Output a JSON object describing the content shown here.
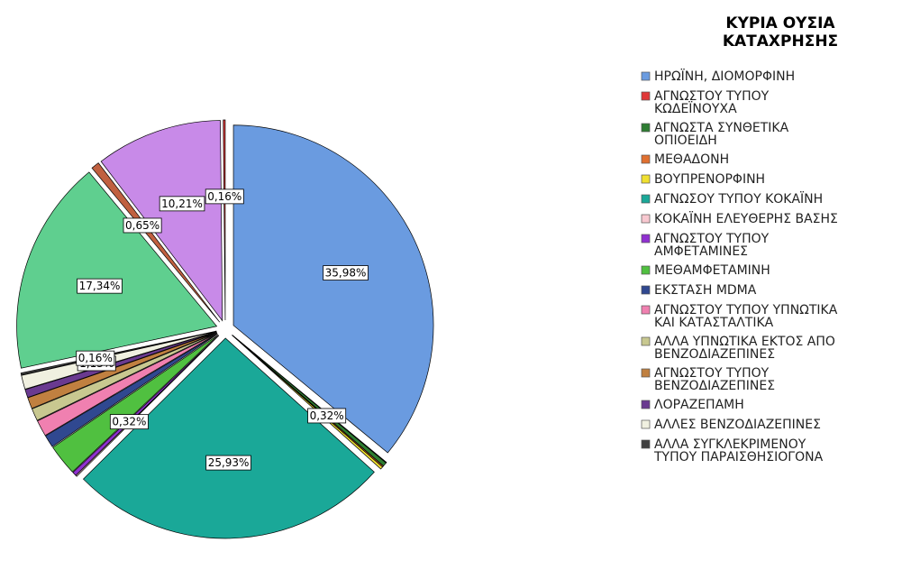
{
  "chart_data": {
    "type": "pie",
    "legend_title": "ΚΥΡΙΑ ΟΥΣΙΑ\nΚΑΤΑΧΡΗΣΗΣ",
    "categories": [
      "ΗΡΩΪΝΗ, ΔΙΟΜΟΡΦΙΝΗ",
      "ΑΓΝΩΣΤΟΥ ΤΥΠΟΥ\nΚΩΔΕΪΝΟΥΧΑ",
      "ΑΓΝΩΣΤΑ ΣΥΝΘΕΤΙΚΑ\nΟΠΙΟΕΙΔΗ",
      "ΜΕΘΑΔΟΝΗ",
      "ΒΟΥΠΡΕΝΟΡΦΙΝΗ",
      "ΑΓΝΩΣΟΥ ΤΥΠΟΥ ΚΟΚΑΪΝΗ",
      "ΚΟΚΑΪΝΗ ΕΛΕΥΘΕΡΗΣ ΒΑΣΗΣ",
      "ΑΓΝΩΣΤΟΥ ΤΥΠΟΥ\nΑΜΦΕΤΑΜΙΝΕΣ",
      "ΜΕΘΑΜΦΕΤΑΜΙΝΗ",
      "ΕΚΣΤΑΣΗ MDMA",
      "ΑΓΝΩΣΤΟΥ ΤΥΠΟΥ ΥΠΝΩΤΙΚΑ\nΚΑΙ ΚΑΤΑΣΤΑΛΤΙΚΑ",
      "ΑΛΛΑ ΥΠΝΩΤΙΚΑ ΕΚΤΟΣ ΑΠΟ\nΒΕΝΖΟΔΙΑΖΕΠΙΝΕΣ",
      "ΑΓΝΩΣΤΟΥ ΤΥΠΟΥ\nΒΕΝΖΟΔΙΑΖΕΠΙΝΕΣ",
      "ΛΟΡΑΖΕΠΑΜΗ",
      "ΑΛΛΕΣ ΒΕΝΖΟΔΙΑΖΕΠΙΝΕΣ",
      "ΑΛΛΑ ΣΥΓΚΛΕΚΡΙΜΕΝΟΥ\nΤΥΠΟΥ ΠΑΡΑΙΣΘΗΣΙΟΓΟΝΑ",
      null,
      null,
      null,
      null
    ],
    "values": [
      35.98,
      0.05,
      0.32,
      0.1,
      0.2,
      25.93,
      0.1,
      0.32,
      2.5,
      1.0,
      1.3,
      1.0,
      0.9,
      0.65,
      1.13,
      0.16,
      17.34,
      0.65,
      10.21,
      0.16
    ],
    "value_labels": [
      "35,98%",
      null,
      "0,32%",
      null,
      null,
      "25,93%",
      null,
      "0,32%",
      null,
      null,
      null,
      null,
      null,
      null,
      "1,13%",
      "0,16%",
      "17,34%",
      "0,65%",
      "10,21%",
      "0,16%"
    ],
    "colors": [
      "#6a9be0",
      "#e03838",
      "#2e7d32",
      "#e07030",
      "#f0e030",
      "#1aa898",
      "#f8c8d0",
      "#9030d0",
      "#50c040",
      "#304890",
      "#f080b0",
      "#c8c890",
      "#c08040",
      "#6a3a90",
      "#f0f0e0",
      "#404040",
      "#5fcf8f",
      "#c06040",
      "#c88ae8",
      "#e03838"
    ]
  }
}
